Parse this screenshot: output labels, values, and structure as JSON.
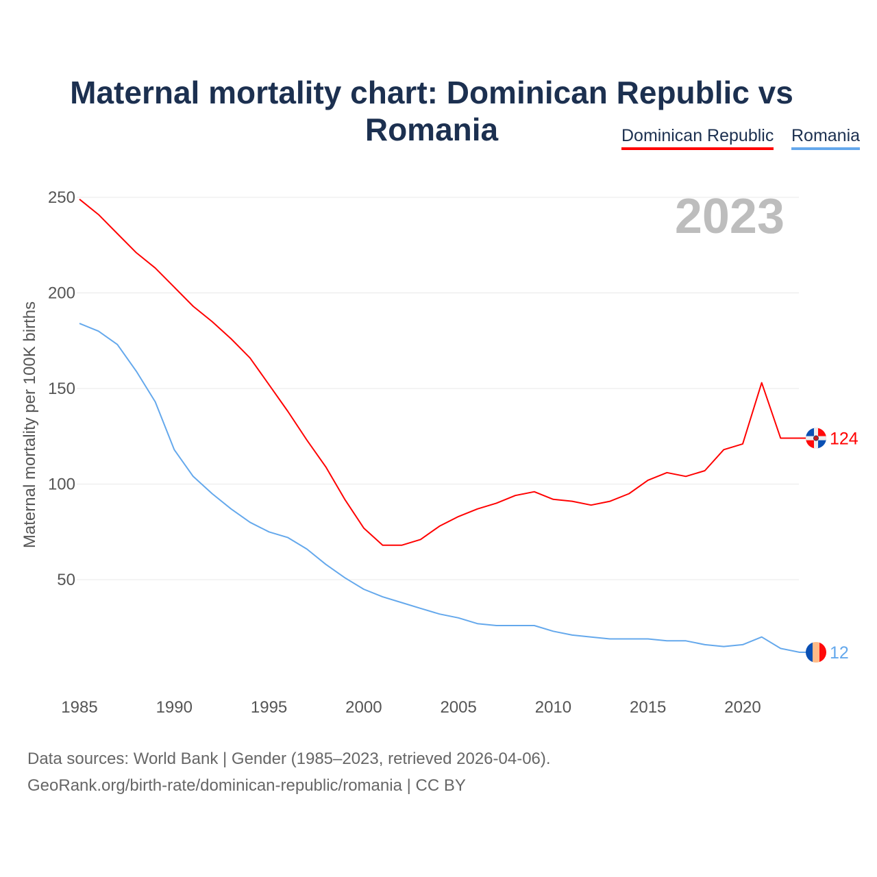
{
  "chart_data": {
    "type": "line",
    "title": "Maternal mortality chart: Dominican Republic vs Romania",
    "ylabel": "Maternal mortality per 100K births",
    "xlabel": "",
    "year_label": "2023",
    "xlim": [
      1985,
      2023
    ],
    "ylim": [
      0,
      250
    ],
    "x_ticks": [
      "1985",
      "1990",
      "1995",
      "2000",
      "2005",
      "2010",
      "2015",
      "2020"
    ],
    "y_ticks": [
      "50",
      "100",
      "150",
      "200",
      "250"
    ],
    "grid": true,
    "legend_position": "top-right",
    "x": [
      1985,
      1986,
      1987,
      1988,
      1989,
      1990,
      1991,
      1992,
      1993,
      1994,
      1995,
      1996,
      1997,
      1998,
      1999,
      2000,
      2001,
      2002,
      2003,
      2004,
      2005,
      2006,
      2007,
      2008,
      2009,
      2010,
      2011,
      2012,
      2013,
      2014,
      2015,
      2016,
      2017,
      2018,
      2019,
      2020,
      2021,
      2022,
      2023
    ],
    "series": [
      {
        "name": "Dominican Republic",
        "color": "#ff0000",
        "end_label": "124",
        "values": [
          249,
          241,
          231,
          221,
          213,
          203,
          193,
          185,
          176,
          166,
          152,
          138,
          123,
          109,
          92,
          77,
          68,
          68,
          71,
          78,
          83,
          87,
          90,
          94,
          96,
          92,
          91,
          89,
          91,
          95,
          102,
          106,
          104,
          107,
          118,
          121,
          153,
          124,
          124
        ]
      },
      {
        "name": "Romania",
        "color": "#64a8ec",
        "end_label": "12",
        "values": [
          184,
          180,
          173,
          159,
          143,
          118,
          104,
          95,
          87,
          80,
          75,
          72,
          66,
          58,
          51,
          45,
          41,
          38,
          35,
          32,
          30,
          27,
          26,
          26,
          26,
          23,
          21,
          20,
          19,
          19,
          19,
          18,
          18,
          16,
          15,
          16,
          20,
          14,
          12
        ]
      }
    ]
  },
  "footer": {
    "line1": "Data sources: World Bank | Gender (1985–2023, retrieved 2026-04-06).",
    "line2": "GeoRank.org/birth-rate/dominican-republic/romania | CC BY"
  }
}
